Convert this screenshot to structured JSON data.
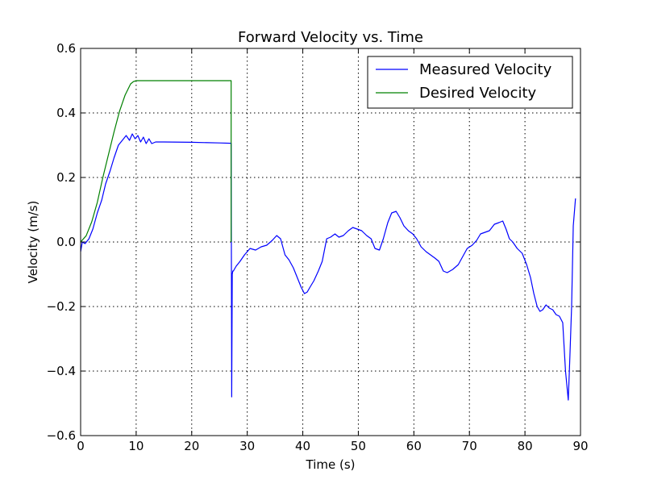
{
  "chart_data": {
    "type": "line",
    "title": "Forward Velocity vs. Time",
    "xlabel": "Time (s)",
    "ylabel": "Velocity (m/s)",
    "xlim": [
      0,
      90
    ],
    "ylim": [
      -0.6,
      0.6
    ],
    "x_ticks": [
      0,
      10,
      20,
      30,
      40,
      50,
      60,
      70,
      80,
      90
    ],
    "y_ticks": [
      -0.6,
      -0.4,
      -0.2,
      0.0,
      0.2,
      0.4,
      0.6
    ],
    "x_tick_labels": [
      "0",
      "10",
      "20",
      "30",
      "40",
      "50",
      "60",
      "70",
      "80",
      "90"
    ],
    "y_tick_labels": [
      "−0.6",
      "−0.4",
      "−0.2",
      "0.0",
      "0.2",
      "0.4",
      "0.6"
    ],
    "grid": true,
    "legend_position": "top-right",
    "series": [
      {
        "name": "Measured Velocity",
        "color": "#0000ff",
        "x": [
          0,
          0.3,
          0.8,
          1.5,
          2.2,
          3,
          3.8,
          4.5,
          5.3,
          6,
          6.8,
          7.5,
          8.2,
          8.8,
          9.3,
          9.8,
          10.3,
          10.8,
          11.3,
          11.8,
          12.3,
          12.8,
          13.5,
          15,
          20,
          25,
          27.1,
          27.2,
          27.3,
          27.4,
          27.5,
          28,
          28.7,
          29.5,
          30.5,
          31.5,
          32.5,
          33.5,
          34.5,
          35.3,
          36,
          36.8,
          37.5,
          38.3,
          39,
          39.7,
          40.3,
          40.8,
          41.3,
          42,
          42.8,
          43.5,
          44.3,
          45,
          45.8,
          46.5,
          47.3,
          48.2,
          49,
          49.8,
          50.6,
          51.5,
          52.3,
          53,
          53.8,
          54.5,
          55.3,
          56,
          56.8,
          57.5,
          58.2,
          59,
          59.8,
          60.5,
          61.3,
          62.2,
          63,
          63.8,
          64.5,
          65.3,
          66,
          67,
          68,
          68.8,
          69.6,
          70.5,
          71.3,
          72,
          72.8,
          73.6,
          74.5,
          75.3,
          76,
          76.6,
          77.2,
          77.8,
          78.6,
          79.5,
          80.3,
          81,
          81.6,
          82.2,
          82.7,
          83.2,
          83.8,
          84.4,
          85,
          85.6,
          86.2,
          86.8,
          87.3,
          87.8,
          88.1,
          88.4,
          88.7,
          89.1
        ],
        "y": [
          -0.03,
          0.0,
          -0.005,
          0.01,
          0.04,
          0.09,
          0.13,
          0.18,
          0.22,
          0.26,
          0.3,
          0.315,
          0.33,
          0.315,
          0.335,
          0.32,
          0.33,
          0.31,
          0.325,
          0.305,
          0.32,
          0.305,
          0.31,
          0.31,
          0.309,
          0.307,
          0.306,
          -0.48,
          -0.1,
          -0.09,
          -0.09,
          -0.075,
          -0.06,
          -0.04,
          -0.02,
          -0.025,
          -0.015,
          -0.01,
          0.005,
          0.02,
          0.01,
          -0.04,
          -0.055,
          -0.08,
          -0.11,
          -0.14,
          -0.16,
          -0.155,
          -0.14,
          -0.12,
          -0.09,
          -0.06,
          0.01,
          0.015,
          0.025,
          0.015,
          0.02,
          0.035,
          0.045,
          0.04,
          0.035,
          0.02,
          0.01,
          -0.02,
          -0.025,
          0.01,
          0.06,
          0.09,
          0.095,
          0.075,
          0.05,
          0.035,
          0.025,
          0.01,
          -0.015,
          -0.03,
          -0.04,
          -0.05,
          -0.06,
          -0.09,
          -0.095,
          -0.085,
          -0.07,
          -0.045,
          -0.02,
          -0.01,
          0.005,
          0.025,
          0.03,
          0.035,
          0.055,
          0.06,
          0.065,
          0.04,
          0.01,
          0.0,
          -0.02,
          -0.035,
          -0.07,
          -0.11,
          -0.16,
          -0.2,
          -0.215,
          -0.21,
          -0.195,
          -0.205,
          -0.21,
          -0.225,
          -0.23,
          -0.25,
          -0.4,
          -0.49,
          -0.35,
          -0.2,
          0.05,
          0.135
        ]
      },
      {
        "name": "Desired Velocity",
        "color": "#008000",
        "x": [
          0,
          1,
          2,
          3,
          4,
          5,
          6,
          7,
          8,
          9,
          9.5,
          10,
          15,
          20,
          25,
          27.1,
          27.1
        ],
        "y": [
          0,
          0.0195,
          0.0625,
          0.1225,
          0.2,
          0.27,
          0.34,
          0.405,
          0.455,
          0.49,
          0.497,
          0.5,
          0.5,
          0.5,
          0.5,
          0.5,
          0.0
        ]
      }
    ]
  }
}
